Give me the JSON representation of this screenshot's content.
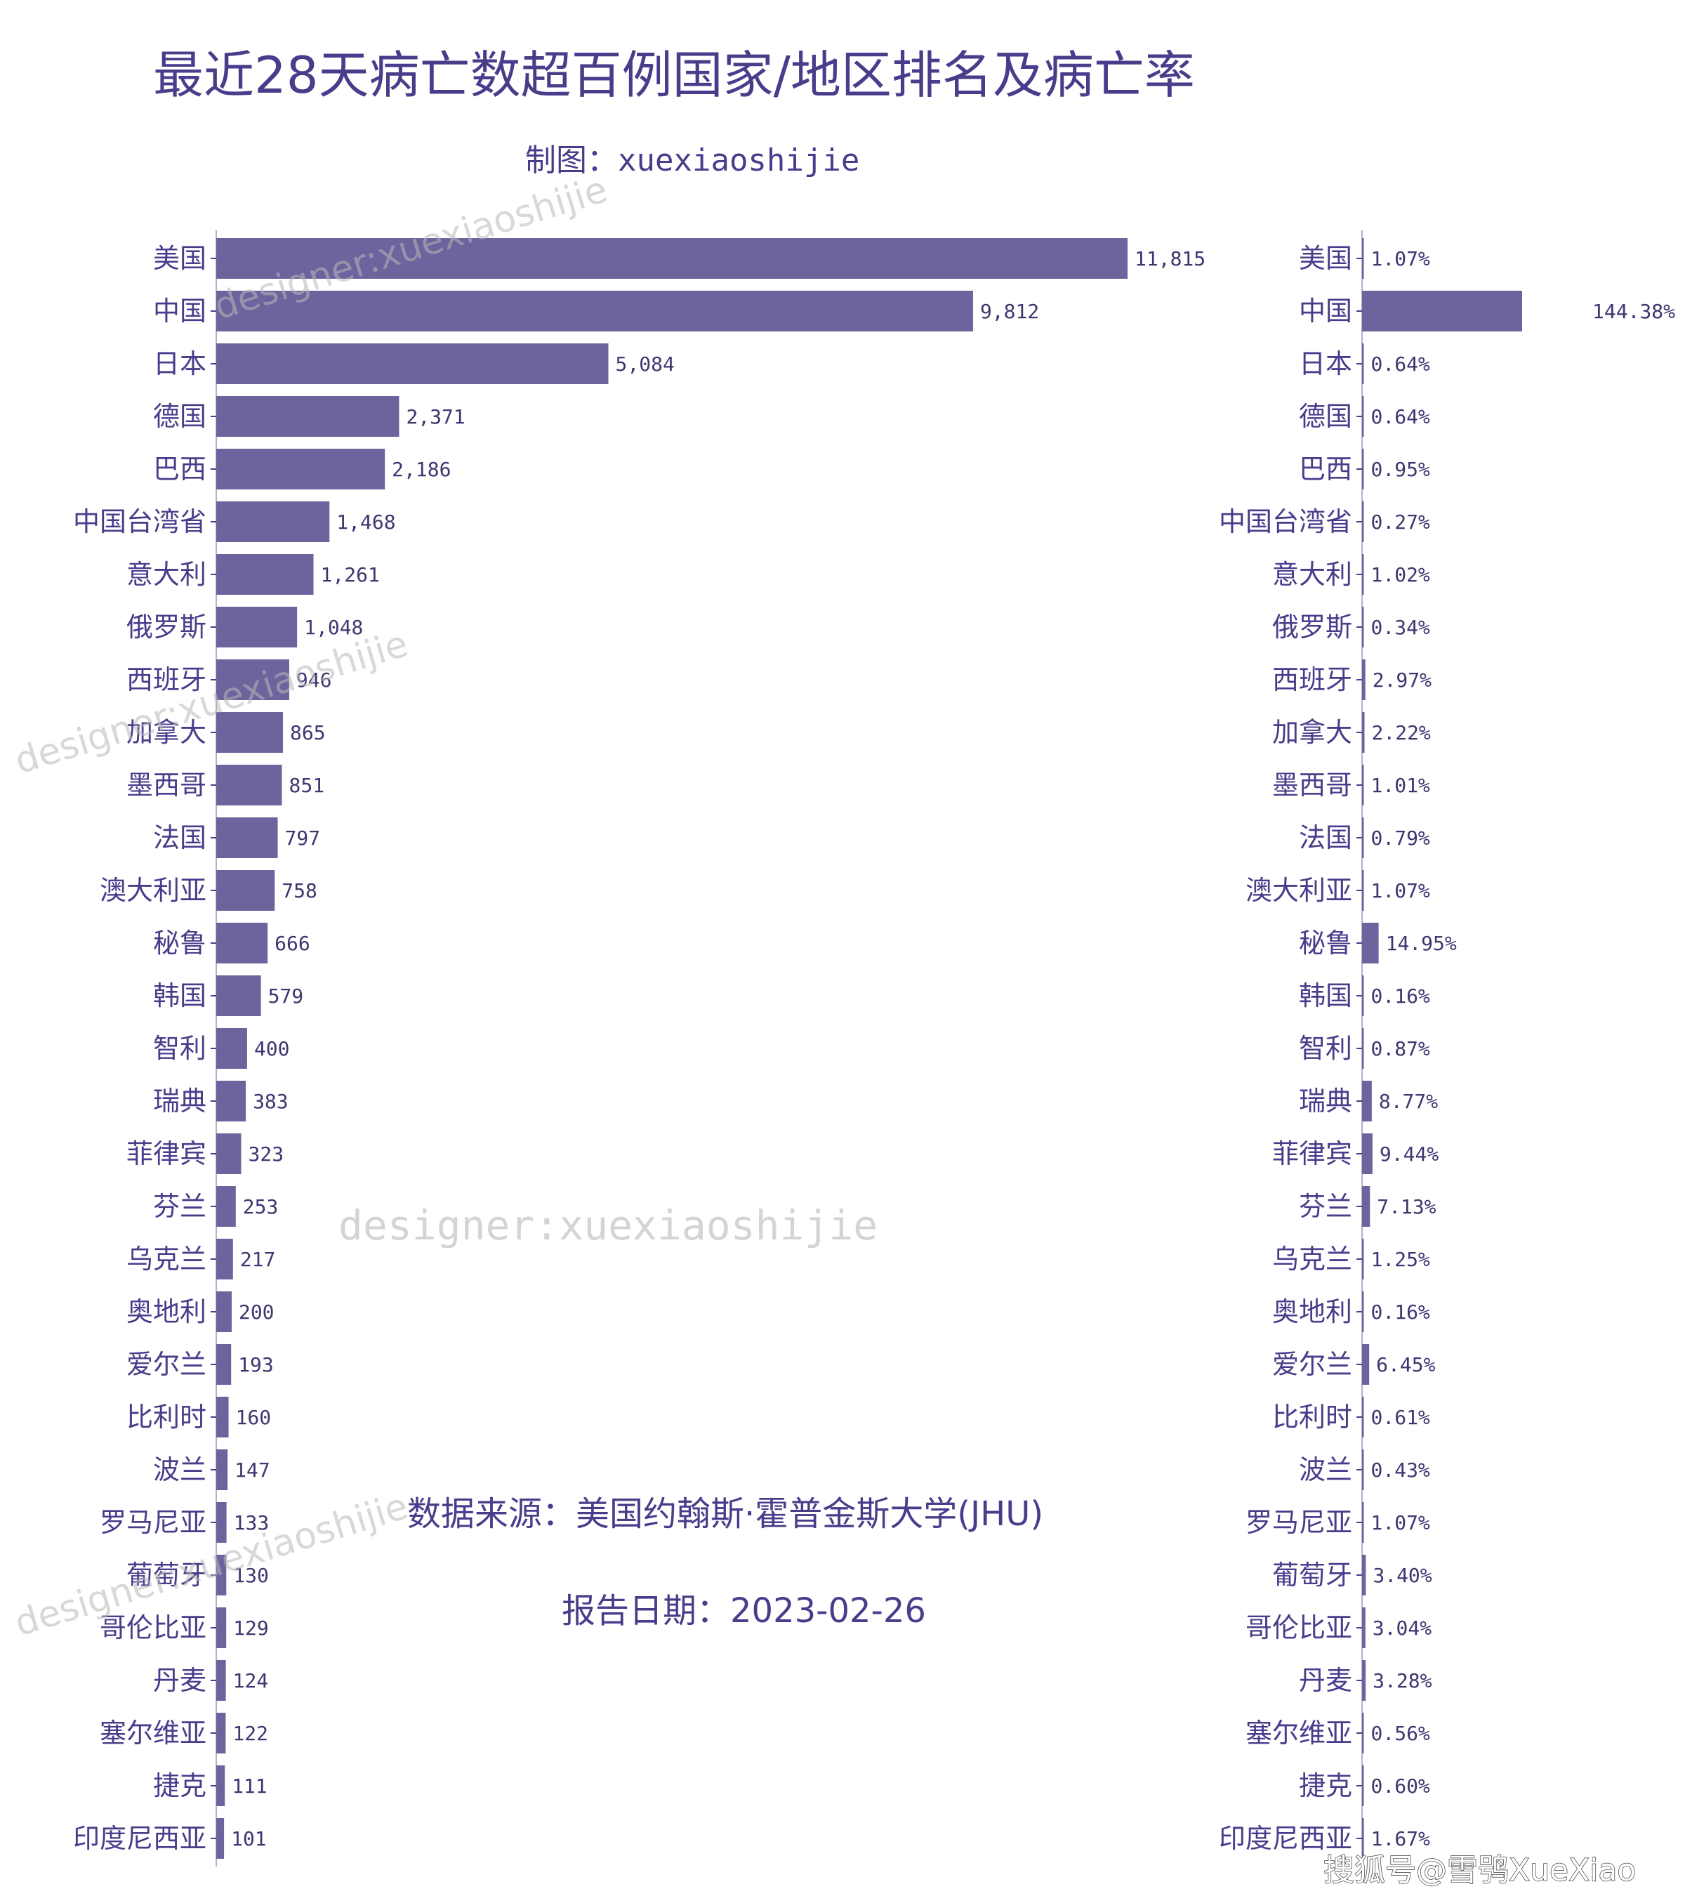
{
  "colors": {
    "bar": "#6b649d",
    "text": "#473d8b"
  },
  "header": {
    "title": "最近28天病亡数超百例国家/地区排名及病亡率",
    "subtitle": "制图：xuexiaoshijie"
  },
  "notes": {
    "source": "数据来源：美国约翰斯·霍普金斯大学(JHU)",
    "date": "报告日期：2023-02-26"
  },
  "watermarks": [
    "designer:xuexiaoshijie",
    "designer:xuexiaoshijie",
    "designer:xuexiaoshijie",
    "designer:xuexiaoshijie",
    "designer:xuexiaoshijie"
  ],
  "corner_mark": "搜狐号@雪鸮XueXiao",
  "chart_data": [
    {
      "type": "bar",
      "orientation": "horizontal",
      "categories": [
        "美国",
        "中国",
        "日本",
        "德国",
        "巴西",
        "中国台湾省",
        "意大利",
        "俄罗斯",
        "西班牙",
        "加拿大",
        "墨西哥",
        "法国",
        "澳大利亚",
        "秘鲁",
        "韩国",
        "智利",
        "瑞典",
        "菲律宾",
        "芬兰",
        "乌克兰",
        "奥地利",
        "爱尔兰",
        "比利时",
        "波兰",
        "罗马尼亚",
        "葡萄牙",
        "哥伦比亚",
        "丹麦",
        "塞尔维亚",
        "捷克",
        "印度尼西亚"
      ],
      "values": [
        11815,
        9812,
        5084,
        2371,
        2186,
        1468,
        1261,
        1048,
        946,
        865,
        851,
        797,
        758,
        666,
        579,
        400,
        383,
        323,
        253,
        217,
        200,
        193,
        160,
        147,
        133,
        130,
        129,
        124,
        122,
        111,
        101
      ],
      "value_labels": [
        "11,815",
        "9,812",
        "5,084",
        "2,371",
        "2,186",
        "1,468",
        "1,261",
        "1,048",
        "946",
        "865",
        "851",
        "797",
        "758",
        "666",
        "579",
        "400",
        "383",
        "323",
        "253",
        "217",
        "200",
        "193",
        "160",
        "147",
        "133",
        "130",
        "129",
        "124",
        "122",
        "111",
        "101"
      ],
      "xlim": [
        0,
        11815
      ]
    },
    {
      "type": "bar",
      "orientation": "horizontal",
      "categories": [
        "美国",
        "中国",
        "日本",
        "德国",
        "巴西",
        "中国台湾省",
        "意大利",
        "俄罗斯",
        "西班牙",
        "加拿大",
        "墨西哥",
        "法国",
        "澳大利亚",
        "秘鲁",
        "韩国",
        "智利",
        "瑞典",
        "菲律宾",
        "芬兰",
        "乌克兰",
        "奥地利",
        "爱尔兰",
        "比利时",
        "波兰",
        "罗马尼亚",
        "葡萄牙",
        "哥伦比亚",
        "丹麦",
        "塞尔维亚",
        "捷克",
        "印度尼西亚"
      ],
      "values": [
        1.07,
        144.38,
        0.64,
        0.64,
        0.95,
        0.27,
        1.02,
        0.34,
        2.97,
        2.22,
        1.01,
        0.79,
        1.07,
        14.95,
        0.16,
        0.87,
        8.77,
        9.44,
        7.13,
        1.25,
        0.16,
        6.45,
        0.61,
        0.43,
        1.07,
        3.4,
        3.04,
        3.28,
        0.56,
        0.6,
        1.67
      ],
      "value_labels": [
        "1.07%",
        "144.38%",
        "0.64%",
        "0.64%",
        "0.95%",
        "0.27%",
        "1.02%",
        "0.34%",
        "2.97%",
        "2.22%",
        "1.01%",
        "0.79%",
        "1.07%",
        "14.95%",
        "0.16%",
        "0.87%",
        "8.77%",
        "9.44%",
        "7.13%",
        "1.25%",
        "0.16%",
        "6.45%",
        "0.61%",
        "0.43%",
        "1.07%",
        "3.40%",
        "3.04%",
        "3.28%",
        "0.56%",
        "0.60%",
        "1.67%"
      ],
      "unit": "%",
      "xlim": [
        0,
        144.38
      ]
    }
  ]
}
